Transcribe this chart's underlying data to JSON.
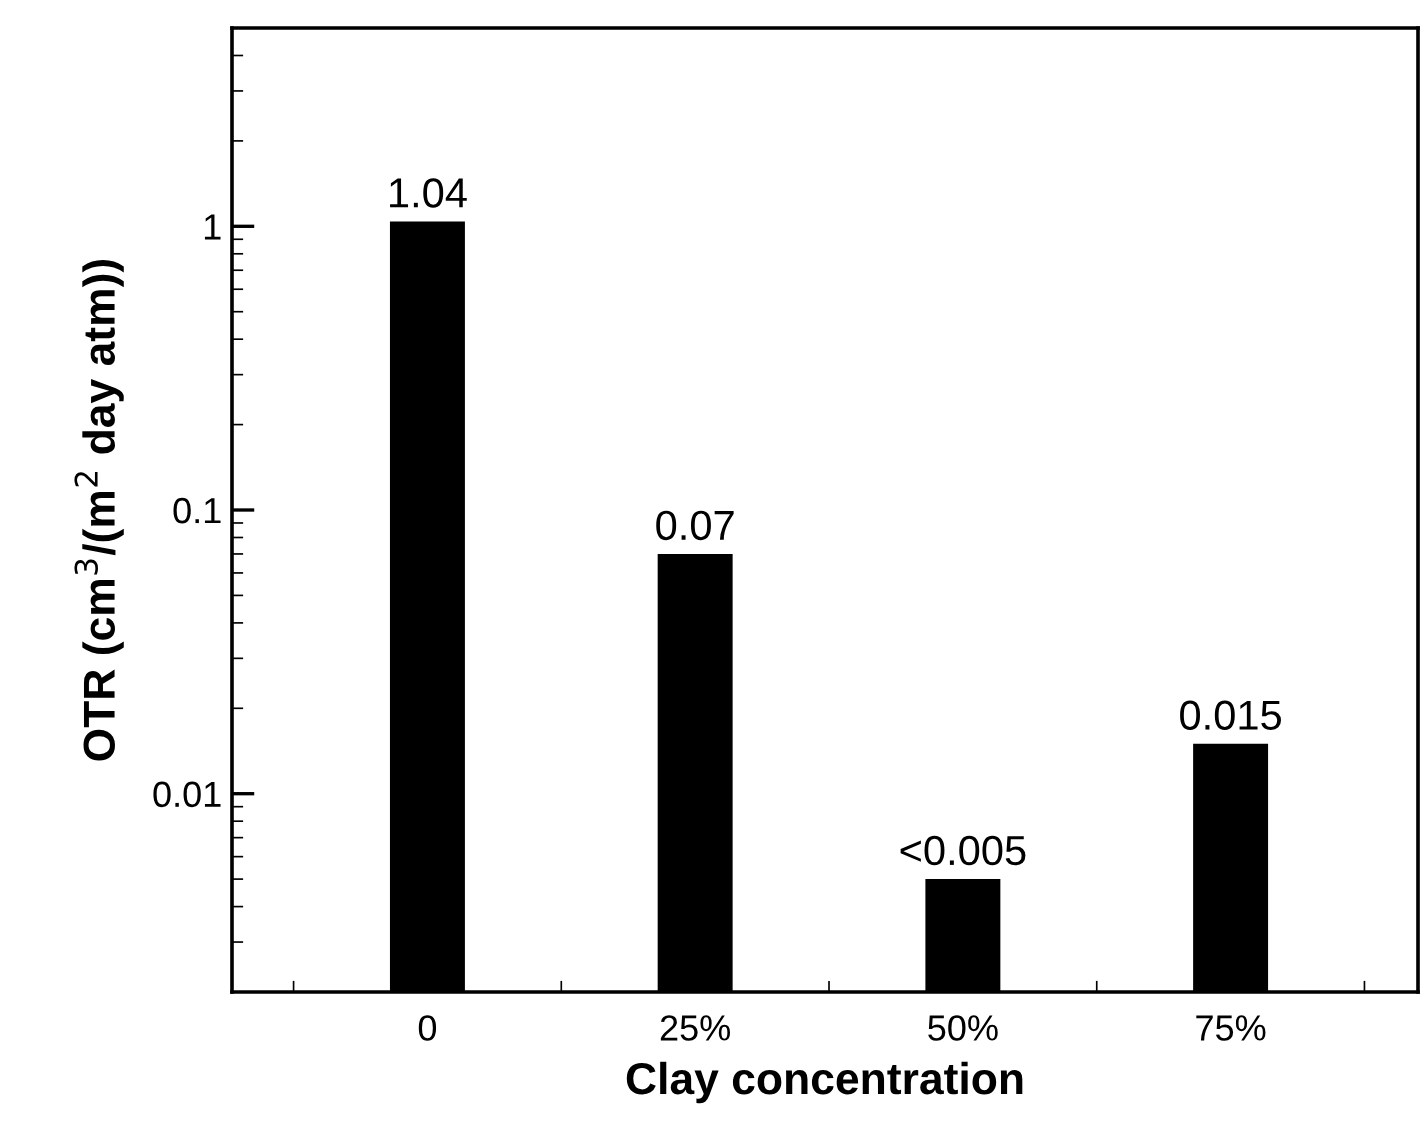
{
  "chart_data": {
    "type": "bar",
    "xlabel": "Clay concentration",
    "ylabel": "OTR (cm$^{3}$/(m$^{2}$ day atm))",
    "categories": [
      "0",
      "25%",
      "50%",
      "75%"
    ],
    "values": [
      1.04,
      0.07,
      0.005,
      0.015
    ],
    "value_labels": [
      "1.04",
      "0.07",
      "<0.005",
      "0.015"
    ],
    "color": "#000000",
    "log": true,
    "ylim": [
      0.002,
      5
    ],
    "yticks": [
      0.01,
      0.1,
      1
    ],
    "grid": false,
    "legend": false
  }
}
